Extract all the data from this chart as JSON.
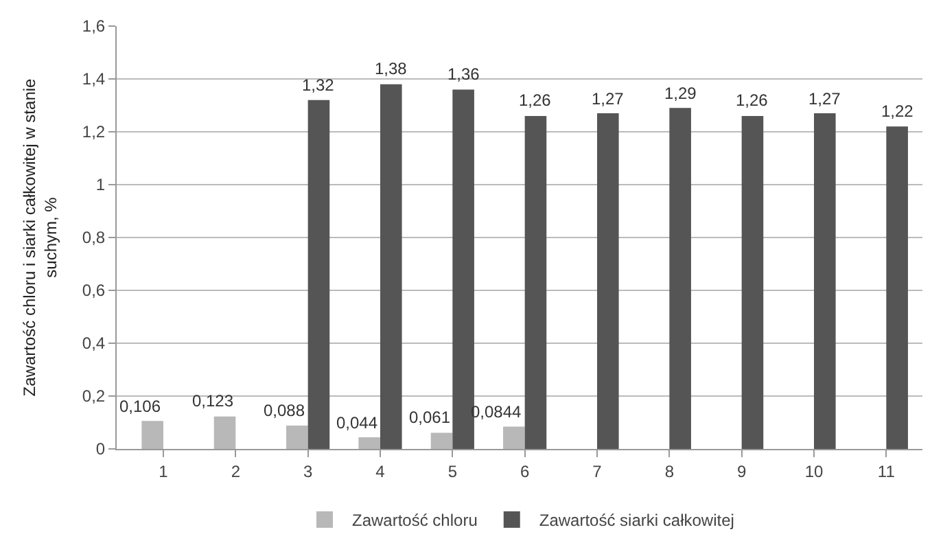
{
  "chart_data": {
    "type": "bar",
    "ylabel": "Zawartość chloru i siarki całkowitej w stanie suchym, %",
    "categories": [
      "1",
      "2",
      "3",
      "4",
      "5",
      "6",
      "7",
      "8",
      "9",
      "10",
      "11"
    ],
    "series": [
      {
        "name": "Zawartość chloru",
        "color": "#b8b8b8",
        "values": [
          0.106,
          0.123,
          0.088,
          0.044,
          0.061,
          0.0844,
          null,
          null,
          null,
          null,
          null
        ],
        "value_labels": [
          "0,106",
          "0,123",
          "0,088",
          "0,044",
          "0,061",
          "0,0844",
          null,
          null,
          null,
          null,
          null
        ]
      },
      {
        "name": "Zawartość siarki całkowitej",
        "color": "#555555",
        "values": [
          null,
          null,
          1.32,
          1.38,
          1.36,
          1.26,
          1.27,
          1.29,
          1.26,
          1.27,
          1.22
        ],
        "value_labels": [
          null,
          null,
          "1,32",
          "1,38",
          "1,36",
          "1,26",
          "1,27",
          "1,29",
          "1,26",
          "1,27",
          "1,22"
        ]
      }
    ],
    "ylim": [
      0,
      1.6
    ],
    "yticks": [
      0,
      {
        "value": 0.2,
        "label": "0,2"
      },
      {
        "value": 0.4,
        "label": "0,4"
      },
      {
        "value": 0.6,
        "label": "0,6"
      },
      {
        "value": 0.8,
        "label": "0,8"
      },
      1,
      {
        "value": 1.2,
        "label": "1,2"
      },
      {
        "value": 1.4,
        "label": "1,4"
      },
      {
        "value": 1.6,
        "label": "1,6"
      }
    ],
    "grid": "y",
    "legend": "bottom"
  }
}
